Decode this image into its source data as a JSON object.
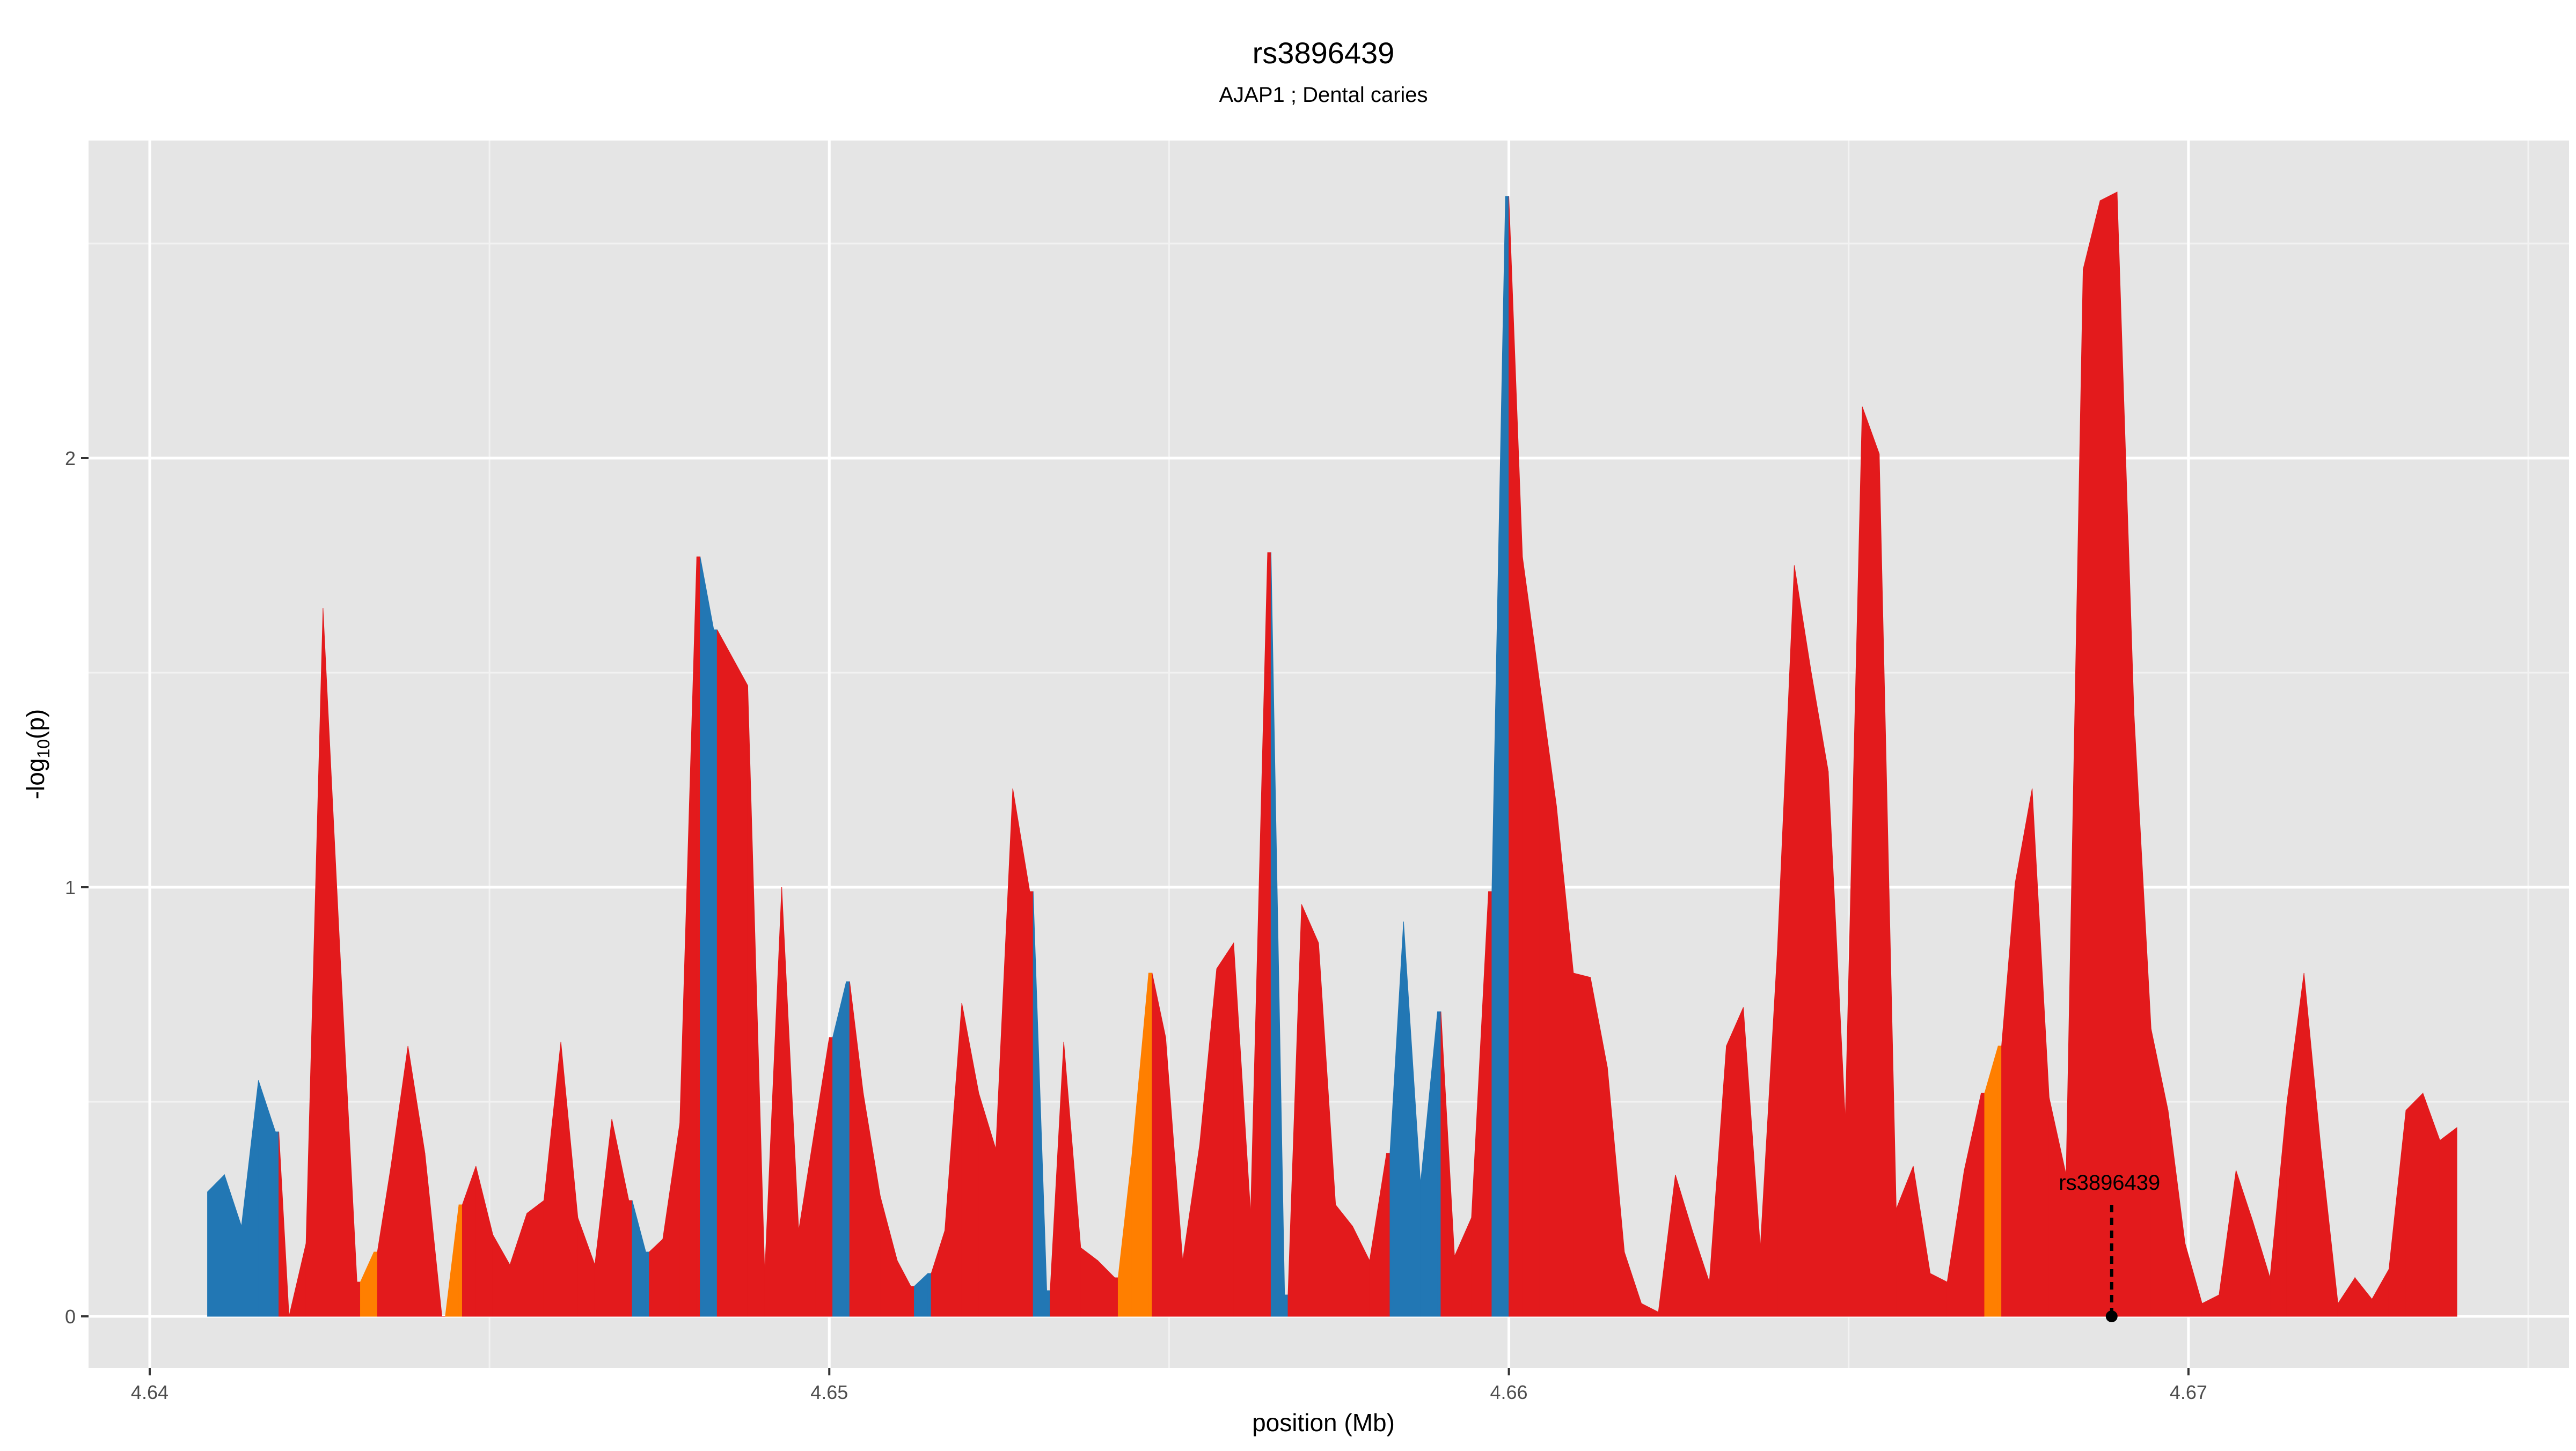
{
  "chart_data": {
    "type": "area",
    "title": "rs3896439",
    "subtitle": "AJAP1 ; Dental caries",
    "xlabel": "position (Mb)",
    "ylabel_main": "-log",
    "ylabel_sub": "10",
    "ylabel_tail": "(p)",
    "xlim": [
      4.6391,
      4.6756
    ],
    "ylim": [
      -0.12,
      2.74
    ],
    "x_ticks": [
      4.64,
      4.65,
      4.66,
      4.67
    ],
    "x_tick_labels": [
      "4.64",
      "4.65",
      "4.66",
      "4.67"
    ],
    "y_ticks": [
      0,
      1,
      2
    ],
    "y_tick_labels": [
      "0",
      "1",
      "2"
    ],
    "grid": true,
    "colors": {
      "panel": "#e5e5e5",
      "grid_major": "#ffffff",
      "grid_minor": "#f2f2f2",
      "red": "#e31a1c",
      "blue": "#2277b4",
      "orange": "#ff7f00",
      "annotation": "#000000"
    },
    "annotation": {
      "label": "rs3896439",
      "x": 4.66887,
      "y_top": 0.26,
      "y_point": 0.0
    },
    "series": [
      {
        "values": [
          [
            4.64085,
            0.29,
            "blue"
          ],
          [
            4.6411,
            0.33,
            "blue"
          ],
          [
            4.64135,
            0.21,
            "blue"
          ],
          [
            4.6416,
            0.55,
            "blue"
          ],
          [
            4.64185,
            0.43,
            "blue"
          ],
          [
            4.6419,
            0.43,
            "red"
          ],
          [
            4.64205,
            0.0,
            "red"
          ],
          [
            4.6423,
            0.17,
            "red"
          ],
          [
            4.64255,
            1.65,
            "red"
          ],
          [
            4.6428,
            0.85,
            "red"
          ],
          [
            4.64305,
            0.08,
            "red"
          ],
          [
            4.6431,
            0.08,
            "orange"
          ],
          [
            4.6433,
            0.15,
            "orange"
          ],
          [
            4.64335,
            0.15,
            "red"
          ],
          [
            4.64355,
            0.35,
            "red"
          ],
          [
            4.6438,
            0.63,
            "red"
          ],
          [
            4.64405,
            0.38,
            "red"
          ],
          [
            4.6443,
            0.0,
            "red"
          ],
          [
            4.64435,
            0.0,
            "orange"
          ],
          [
            4.64455,
            0.26,
            "orange"
          ],
          [
            4.6446,
            0.26,
            "red"
          ],
          [
            4.6448,
            0.35,
            "red"
          ],
          [
            4.64505,
            0.19,
            "red"
          ],
          [
            4.6453,
            0.12,
            "red"
          ],
          [
            4.64555,
            0.24,
            "red"
          ],
          [
            4.6458,
            0.27,
            "red"
          ],
          [
            4.64605,
            0.64,
            "red"
          ],
          [
            4.6463,
            0.23,
            "red"
          ],
          [
            4.64655,
            0.12,
            "red"
          ],
          [
            4.6468,
            0.46,
            "red"
          ],
          [
            4.64705,
            0.27,
            "red"
          ],
          [
            4.6471,
            0.27,
            "blue"
          ],
          [
            4.6473,
            0.15,
            "blue"
          ],
          [
            4.64735,
            0.15,
            "red"
          ],
          [
            4.64755,
            0.18,
            "red"
          ],
          [
            4.6478,
            0.45,
            "red"
          ],
          [
            4.64805,
            1.77,
            "red"
          ],
          [
            4.6481,
            1.77,
            "blue"
          ],
          [
            4.6483,
            1.6,
            "blue"
          ],
          [
            4.64835,
            1.6,
            "red"
          ],
          [
            4.6488,
            1.47,
            "red"
          ],
          [
            4.64905,
            0.1,
            "red"
          ],
          [
            4.6493,
            1.0,
            "red"
          ],
          [
            4.64955,
            0.2,
            "red"
          ],
          [
            4.6498,
            0.45,
            "red"
          ],
          [
            4.65,
            0.65,
            "red"
          ],
          [
            4.65005,
            0.65,
            "blue"
          ],
          [
            4.65025,
            0.78,
            "blue"
          ],
          [
            4.6503,
            0.78,
            "red"
          ],
          [
            4.6505,
            0.52,
            "red"
          ],
          [
            4.65075,
            0.28,
            "red"
          ],
          [
            4.651,
            0.13,
            "red"
          ],
          [
            4.6512,
            0.07,
            "red"
          ],
          [
            4.65125,
            0.07,
            "blue"
          ],
          [
            4.65145,
            0.1,
            "blue"
          ],
          [
            4.6515,
            0.1,
            "red"
          ],
          [
            4.6517,
            0.2,
            "red"
          ],
          [
            4.65195,
            0.73,
            "red"
          ],
          [
            4.6522,
            0.52,
            "red"
          ],
          [
            4.65245,
            0.39,
            "red"
          ],
          [
            4.6527,
            1.23,
            "red"
          ],
          [
            4.65295,
            0.99,
            "red"
          ],
          [
            4.653,
            0.99,
            "blue"
          ],
          [
            4.6532,
            0.06,
            "blue"
          ],
          [
            4.65325,
            0.06,
            "red"
          ],
          [
            4.65345,
            0.64,
            "red"
          ],
          [
            4.6537,
            0.16,
            "red"
          ],
          [
            4.65395,
            0.13,
            "red"
          ],
          [
            4.6542,
            0.09,
            "red"
          ],
          [
            4.65425,
            0.09,
            "orange"
          ],
          [
            4.65445,
            0.37,
            "orange"
          ],
          [
            4.6547,
            0.8,
            "orange"
          ],
          [
            4.65475,
            0.8,
            "red"
          ],
          [
            4.65495,
            0.65,
            "red"
          ],
          [
            4.6552,
            0.13,
            "red"
          ],
          [
            4.65545,
            0.4,
            "red"
          ],
          [
            4.6557,
            0.81,
            "red"
          ],
          [
            4.65595,
            0.87,
            "red"
          ],
          [
            4.6562,
            0.24,
            "red"
          ],
          [
            4.65645,
            1.78,
            "red"
          ],
          [
            4.6565,
            1.78,
            "blue"
          ],
          [
            4.6567,
            0.05,
            "blue"
          ],
          [
            4.65675,
            0.05,
            "red"
          ],
          [
            4.65695,
            0.96,
            "red"
          ],
          [
            4.6572,
            0.87,
            "red"
          ],
          [
            4.65745,
            0.26,
            "red"
          ],
          [
            4.6577,
            0.21,
            "red"
          ],
          [
            4.65795,
            0.13,
            "red"
          ],
          [
            4.6582,
            0.38,
            "red"
          ],
          [
            4.65825,
            0.38,
            "blue"
          ],
          [
            4.65845,
            0.92,
            "blue"
          ],
          [
            4.6587,
            0.31,
            "blue"
          ],
          [
            4.65895,
            0.71,
            "blue"
          ],
          [
            4.659,
            0.71,
            "red"
          ],
          [
            4.6592,
            0.14,
            "red"
          ],
          [
            4.65945,
            0.23,
            "red"
          ],
          [
            4.6597,
            0.99,
            "red"
          ],
          [
            4.65975,
            0.99,
            "blue"
          ],
          [
            4.65995,
            2.61,
            "blue"
          ],
          [
            4.66,
            2.61,
            "red"
          ],
          [
            4.6602,
            1.77,
            "red"
          ],
          [
            4.66045,
            1.48,
            "red"
          ],
          [
            4.6607,
            1.19,
            "red"
          ],
          [
            4.66095,
            0.8,
            "red"
          ],
          [
            4.6612,
            0.79,
            "red"
          ],
          [
            4.66145,
            0.58,
            "red"
          ],
          [
            4.6617,
            0.15,
            "red"
          ],
          [
            4.66195,
            0.03,
            "red"
          ],
          [
            4.6622,
            0.01,
            "red"
          ],
          [
            4.66245,
            0.33,
            "red"
          ],
          [
            4.6627,
            0.2,
            "red"
          ],
          [
            4.66295,
            0.08,
            "red"
          ],
          [
            4.6632,
            0.63,
            "red"
          ],
          [
            4.66345,
            0.72,
            "red"
          ],
          [
            4.6637,
            0.16,
            "red"
          ],
          [
            4.66395,
            0.85,
            "red"
          ],
          [
            4.6642,
            1.75,
            "red"
          ],
          [
            4.66445,
            1.5,
            "red"
          ],
          [
            4.6647,
            1.27,
            "red"
          ],
          [
            4.66495,
            0.46,
            "red"
          ],
          [
            4.6652,
            2.12,
            "red"
          ],
          [
            4.66545,
            2.01,
            "red"
          ],
          [
            4.6657,
            0.25,
            "red"
          ],
          [
            4.66595,
            0.35,
            "red"
          ],
          [
            4.6662,
            0.1,
            "red"
          ],
          [
            4.66645,
            0.08,
            "red"
          ],
          [
            4.6667,
            0.34,
            "red"
          ],
          [
            4.66695,
            0.52,
            "red"
          ],
          [
            4.667,
            0.52,
            "orange"
          ],
          [
            4.6672,
            0.63,
            "orange"
          ],
          [
            4.66725,
            0.63,
            "red"
          ],
          [
            4.66745,
            1.01,
            "red"
          ],
          [
            4.6677,
            1.23,
            "red"
          ],
          [
            4.66795,
            0.51,
            "red"
          ],
          [
            4.6682,
            0.33,
            "red"
          ],
          [
            4.66845,
            2.44,
            "red"
          ],
          [
            4.6687,
            2.6,
            "red"
          ],
          [
            4.66895,
            2.62,
            "red"
          ],
          [
            4.6692,
            1.4,
            "red"
          ],
          [
            4.66945,
            0.67,
            "red"
          ],
          [
            4.6697,
            0.48,
            "red"
          ],
          [
            4.66995,
            0.17,
            "red"
          ],
          [
            4.6702,
            0.03,
            "red"
          ],
          [
            4.67045,
            0.05,
            "red"
          ],
          [
            4.6707,
            0.34,
            "red"
          ],
          [
            4.67095,
            0.22,
            "red"
          ],
          [
            4.6712,
            0.09,
            "red"
          ],
          [
            4.67145,
            0.5,
            "red"
          ],
          [
            4.6717,
            0.8,
            "red"
          ],
          [
            4.67195,
            0.39,
            "red"
          ],
          [
            4.6722,
            0.03,
            "red"
          ],
          [
            4.67245,
            0.09,
            "red"
          ],
          [
            4.6727,
            0.04,
            "red"
          ],
          [
            4.67295,
            0.11,
            "red"
          ],
          [
            4.6732,
            0.48,
            "red"
          ],
          [
            4.67345,
            0.52,
            "red"
          ],
          [
            4.6737,
            0.41,
            "red"
          ],
          [
            4.67395,
            0.44,
            "red"
          ]
        ]
      }
    ]
  }
}
